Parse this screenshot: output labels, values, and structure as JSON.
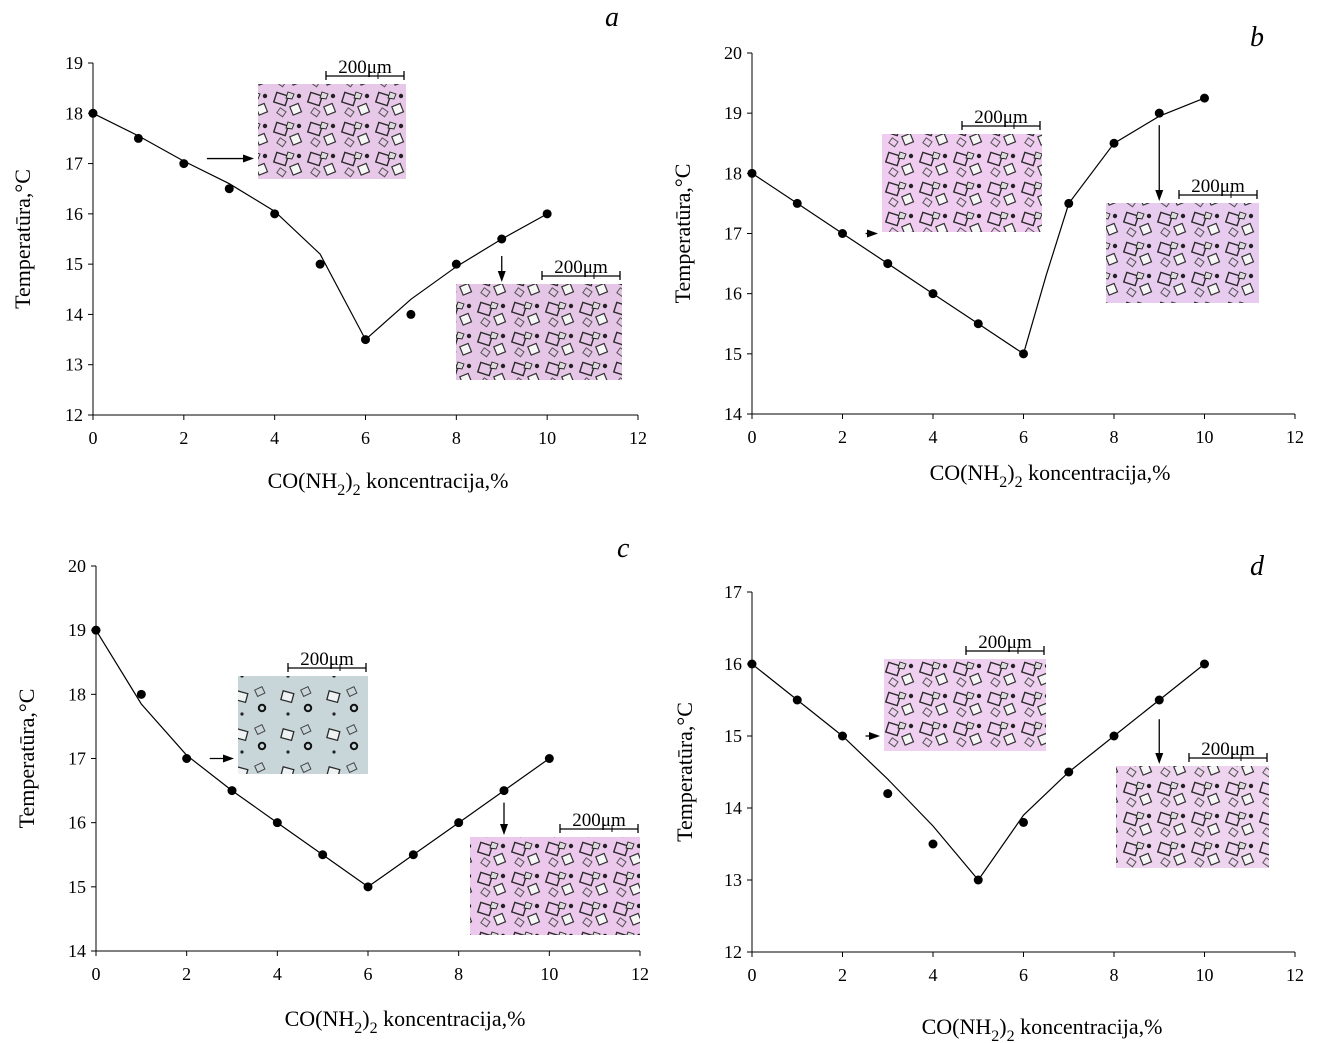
{
  "chart_data": [
    {
      "type": "scatter",
      "panel_label": "a",
      "xlabel": "CO(NH2)2 koncentracija,%",
      "xlabel_parts": {
        "main": "CO(NH",
        "sub1": "2",
        "mid": ")",
        "sub2": "2",
        "tail": "  koncentracija,%"
      },
      "ylabel": "Temperatūra,°C",
      "xlim": [
        0,
        12
      ],
      "ylim": [
        12,
        19
      ],
      "xticks": [
        0,
        2,
        4,
        6,
        8,
        10,
        12
      ],
      "yticks": [
        12,
        13,
        14,
        15,
        16,
        17,
        18,
        19
      ],
      "x": [
        0,
        1,
        2,
        3,
        4,
        5,
        6,
        7,
        8,
        9,
        10
      ],
      "y": [
        18,
        17.5,
        17,
        16.5,
        16,
        15,
        13.5,
        14,
        15,
        15.5,
        16
      ],
      "curve": [
        [
          0,
          18
        ],
        [
          1,
          17.55
        ],
        [
          2,
          17.05
        ],
        [
          3,
          16.6
        ],
        [
          4,
          16.05
        ],
        [
          5,
          15.2
        ],
        [
          6,
          13.5
        ],
        [
          7,
          14.3
        ],
        [
          8,
          14.95
        ],
        [
          9,
          15.5
        ],
        [
          10,
          16
        ]
      ],
      "insets": [
        {
          "scale_label": "200μm",
          "color": "#e8c8e8",
          "arrow_to": [
            2.2,
            17.1
          ],
          "arrow_dir": "right"
        },
        {
          "scale_label": "200μm",
          "color": "#e6c6e6",
          "arrow_to": [
            9,
            15.4
          ],
          "arrow_dir": "down"
        }
      ]
    },
    {
      "type": "scatter",
      "panel_label": "b",
      "xlabel": "CO(NH2)2 koncentracija,%",
      "xlabel_parts": {
        "main": "CO(NH",
        "sub1": "2",
        "mid": ")",
        "sub2": "2",
        "tail": "  koncentracija,%"
      },
      "ylabel": "Temperatūra,°C",
      "xlim": [
        0,
        12
      ],
      "ylim": [
        14,
        20
      ],
      "xticks": [
        0,
        2,
        4,
        6,
        8,
        10,
        12
      ],
      "yticks": [
        14,
        15,
        16,
        17,
        18,
        19,
        20
      ],
      "x": [
        0,
        1,
        2,
        3,
        4,
        5,
        6,
        7,
        8,
        9,
        10
      ],
      "y": [
        18,
        17.5,
        17,
        16.5,
        16,
        15.5,
        15,
        17.5,
        18.5,
        19,
        19.25
      ],
      "curve": [
        [
          0,
          18
        ],
        [
          1,
          17.5
        ],
        [
          2,
          17
        ],
        [
          3,
          16.5
        ],
        [
          4,
          16
        ],
        [
          5,
          15.5
        ],
        [
          6,
          15
        ],
        [
          6.5,
          16.3
        ],
        [
          7,
          17.5
        ],
        [
          8,
          18.5
        ],
        [
          9,
          18.95
        ],
        [
          10,
          19.25
        ]
      ],
      "insets": [
        {
          "scale_label": "200μm",
          "color": "#f0cdf0",
          "arrow_to": [
            2.2,
            17
          ],
          "arrow_dir": "right"
        },
        {
          "scale_label": "200μm",
          "color": "#e8ccf0",
          "arrow_to": [
            9,
            19
          ],
          "arrow_dir": "down"
        }
      ]
    },
    {
      "type": "scatter",
      "panel_label": "c",
      "xlabel": "CO(NH2)2 koncentracija,%",
      "xlabel_parts": {
        "main": "CO(NH",
        "sub1": "2",
        "mid": ")",
        "sub2": "2",
        "tail": "  koncentracija,%"
      },
      "ylabel": "Temperatūra,°C",
      "xlim": [
        0,
        12
      ],
      "ylim": [
        14,
        20
      ],
      "xticks": [
        0,
        2,
        4,
        6,
        8,
        10,
        12
      ],
      "yticks": [
        14,
        15,
        16,
        17,
        18,
        19,
        20
      ],
      "x": [
        0,
        1,
        2,
        3,
        4,
        5,
        6,
        7,
        8,
        9,
        10
      ],
      "y": [
        19,
        18,
        17,
        16.5,
        16,
        15.5,
        15,
        15.5,
        16,
        16.5,
        17
      ],
      "curve": [
        [
          0,
          19
        ],
        [
          1,
          17.85
        ],
        [
          2,
          17.05
        ],
        [
          3,
          16.5
        ],
        [
          4,
          16
        ],
        [
          5,
          15.5
        ],
        [
          6,
          15
        ],
        [
          7,
          15.5
        ],
        [
          8,
          16
        ],
        [
          9,
          16.5
        ],
        [
          10,
          17
        ]
      ],
      "insets": [
        {
          "scale_label": "200μm",
          "color": "#c8d6da",
          "arrow_to": [
            2.2,
            17
          ],
          "arrow_dir": "right"
        },
        {
          "scale_label": "200μm",
          "color": "#ecc8ec",
          "arrow_to": [
            9,
            16.5
          ],
          "arrow_dir": "down"
        }
      ]
    },
    {
      "type": "scatter",
      "panel_label": "d",
      "xlabel": "CO(NH2)2 koncentracija,%",
      "xlabel_parts": {
        "main": "CO(NH",
        "sub1": "2",
        "mid": ")",
        "sub2": "2",
        "tail": "  koncentracija,%"
      },
      "ylabel": "Temperatūra,°C",
      "xlim": [
        0,
        12
      ],
      "ylim": [
        12,
        17
      ],
      "xticks": [
        0,
        2,
        4,
        6,
        8,
        10,
        12
      ],
      "yticks": [
        12,
        13,
        14,
        15,
        16,
        17
      ],
      "x": [
        0,
        1,
        2,
        3,
        4,
        5,
        6,
        7,
        8,
        9,
        10
      ],
      "y": [
        16,
        15.5,
        15,
        14.2,
        13.5,
        13,
        13.8,
        14.5,
        15,
        15.5,
        16
      ],
      "curve": [
        [
          0,
          16
        ],
        [
          1,
          15.5
        ],
        [
          2,
          15
        ],
        [
          3,
          14.4
        ],
        [
          4,
          13.75
        ],
        [
          5,
          13
        ],
        [
          6,
          13.9
        ],
        [
          7,
          14.5
        ],
        [
          8,
          15
        ],
        [
          9,
          15.5
        ],
        [
          10,
          16
        ]
      ],
      "insets": [
        {
          "scale_label": "200μm",
          "color": "#f0d0f0",
          "arrow_to": [
            2.2,
            15
          ],
          "arrow_dir": "right"
        },
        {
          "scale_label": "200μm",
          "color": "#eed4ee",
          "arrow_to": [
            9,
            15.4
          ],
          "arrow_dir": "down"
        }
      ]
    }
  ]
}
